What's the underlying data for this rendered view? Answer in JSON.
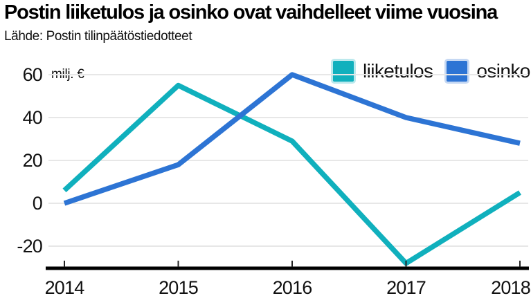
{
  "header": {
    "title": "Postin liiketulos ja osinko ovat vaihdelleet viime vuosina",
    "source": "Lähde: Postin tilinpäätöstiedotteet"
  },
  "chart_data": {
    "type": "line",
    "title": "Postin liiketulos ja osinko ovat vaihdelleet viime vuosina",
    "subtitle_source": "Lähde: Postin tilinpäätöstiedotteet",
    "unit_label": "milj. €",
    "x": [
      2014,
      2015,
      2016,
      2017,
      2018
    ],
    "series": [
      {
        "name": "liiketulos",
        "color": "#10b0bd",
        "values": [
          6,
          55,
          29,
          -28,
          5
        ]
      },
      {
        "name": "osinko",
        "color": "#2d74d4",
        "values": [
          0,
          18,
          60,
          40,
          28
        ]
      }
    ],
    "y_ticks": [
      60,
      40,
      20,
      0,
      -20
    ],
    "ylim": [
      -31,
      62
    ],
    "grid": true,
    "legend_position": "top-right",
    "colors": {
      "liiketulos": "#10b0bd",
      "osinko": "#2d74d4",
      "gridline": "#e7e7e7",
      "axis": "#000000",
      "text": "#111111"
    }
  }
}
